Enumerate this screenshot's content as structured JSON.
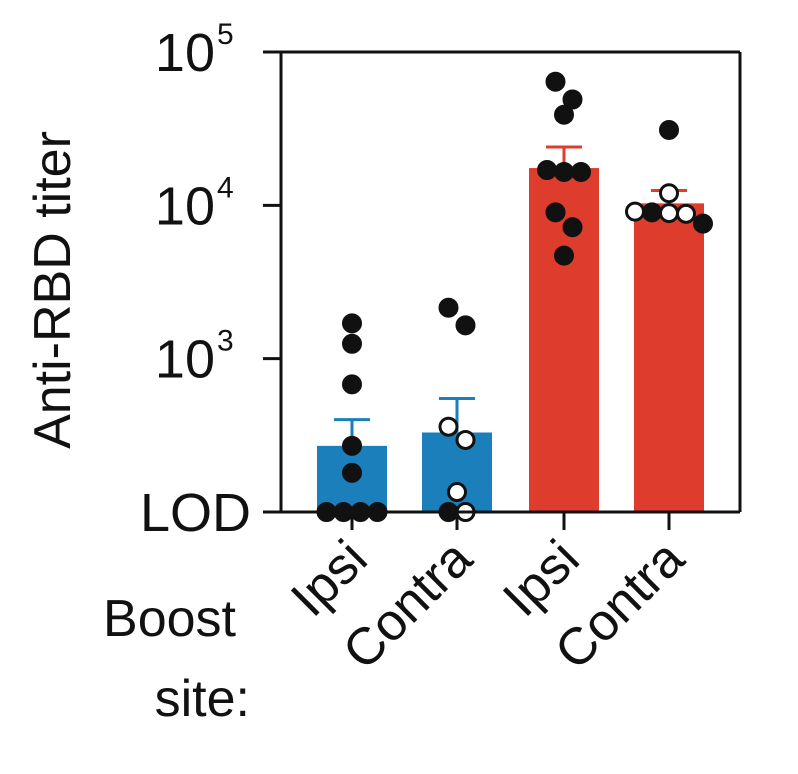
{
  "chart_data": {
    "type": "bar",
    "ylabel": "Anti-RBD titer",
    "yscale": "log",
    "ylim": [
      100,
      100000
    ],
    "yticks": [
      {
        "value": 100,
        "label": "LOD",
        "base": "",
        "exp": ""
      },
      {
        "value": 1000,
        "label": "",
        "base": "10",
        "exp": "3"
      },
      {
        "value": 10000,
        "label": "",
        "base": "10",
        "exp": "4"
      },
      {
        "value": 100000,
        "label": "",
        "base": "10",
        "exp": "5"
      }
    ],
    "x_prefix": [
      "Boost",
      "site:"
    ],
    "categories": [
      "Ipsi",
      "Contra",
      "Ipsi",
      "Contra"
    ],
    "values": [
      270,
      330,
      17500,
      10300
    ],
    "error_upper": [
      400,
      550,
      24000,
      12500
    ],
    "colors": [
      "#1a7fba",
      "#1a7fba",
      "#de3c2d",
      "#de3c2d"
    ],
    "points": [
      [
        {
          "y": 1700,
          "filled": true
        },
        {
          "y": 1250,
          "filled": true
        },
        {
          "y": 680,
          "filled": true
        },
        {
          "y": 270,
          "filled": true
        },
        {
          "y": 180,
          "filled": true
        },
        {
          "y": 100,
          "filled": true
        },
        {
          "y": 100,
          "filled": true
        },
        {
          "y": 100,
          "filled": true
        },
        {
          "y": 100,
          "filled": true
        }
      ],
      [
        {
          "y": 2150,
          "filled": true
        },
        {
          "y": 1650,
          "filled": true
        },
        {
          "y": 360,
          "filled": false
        },
        {
          "y": 295,
          "filled": false
        },
        {
          "y": 135,
          "filled": false
        },
        {
          "y": 100,
          "filled": true
        },
        {
          "y": 100,
          "filled": false
        }
      ],
      [
        {
          "y": 64000,
          "filled": true
        },
        {
          "y": 49000,
          "filled": true
        },
        {
          "y": 39000,
          "filled": true
        },
        {
          "y": 17000,
          "filled": true
        },
        {
          "y": 16500,
          "filled": true
        },
        {
          "y": 16500,
          "filled": true
        },
        {
          "y": 9000,
          "filled": true
        },
        {
          "y": 7200,
          "filled": true
        },
        {
          "y": 4700,
          "filled": true
        }
      ],
      [
        {
          "y": 31000,
          "filled": true
        },
        {
          "y": 12000,
          "filled": false
        },
        {
          "y": 8900,
          "filled": false
        },
        {
          "y": 9000,
          "filled": true
        },
        {
          "y": 8800,
          "filled": false
        },
        {
          "y": 9100,
          "filled": false
        },
        {
          "y": 7600,
          "filled": true
        }
      ]
    ]
  }
}
